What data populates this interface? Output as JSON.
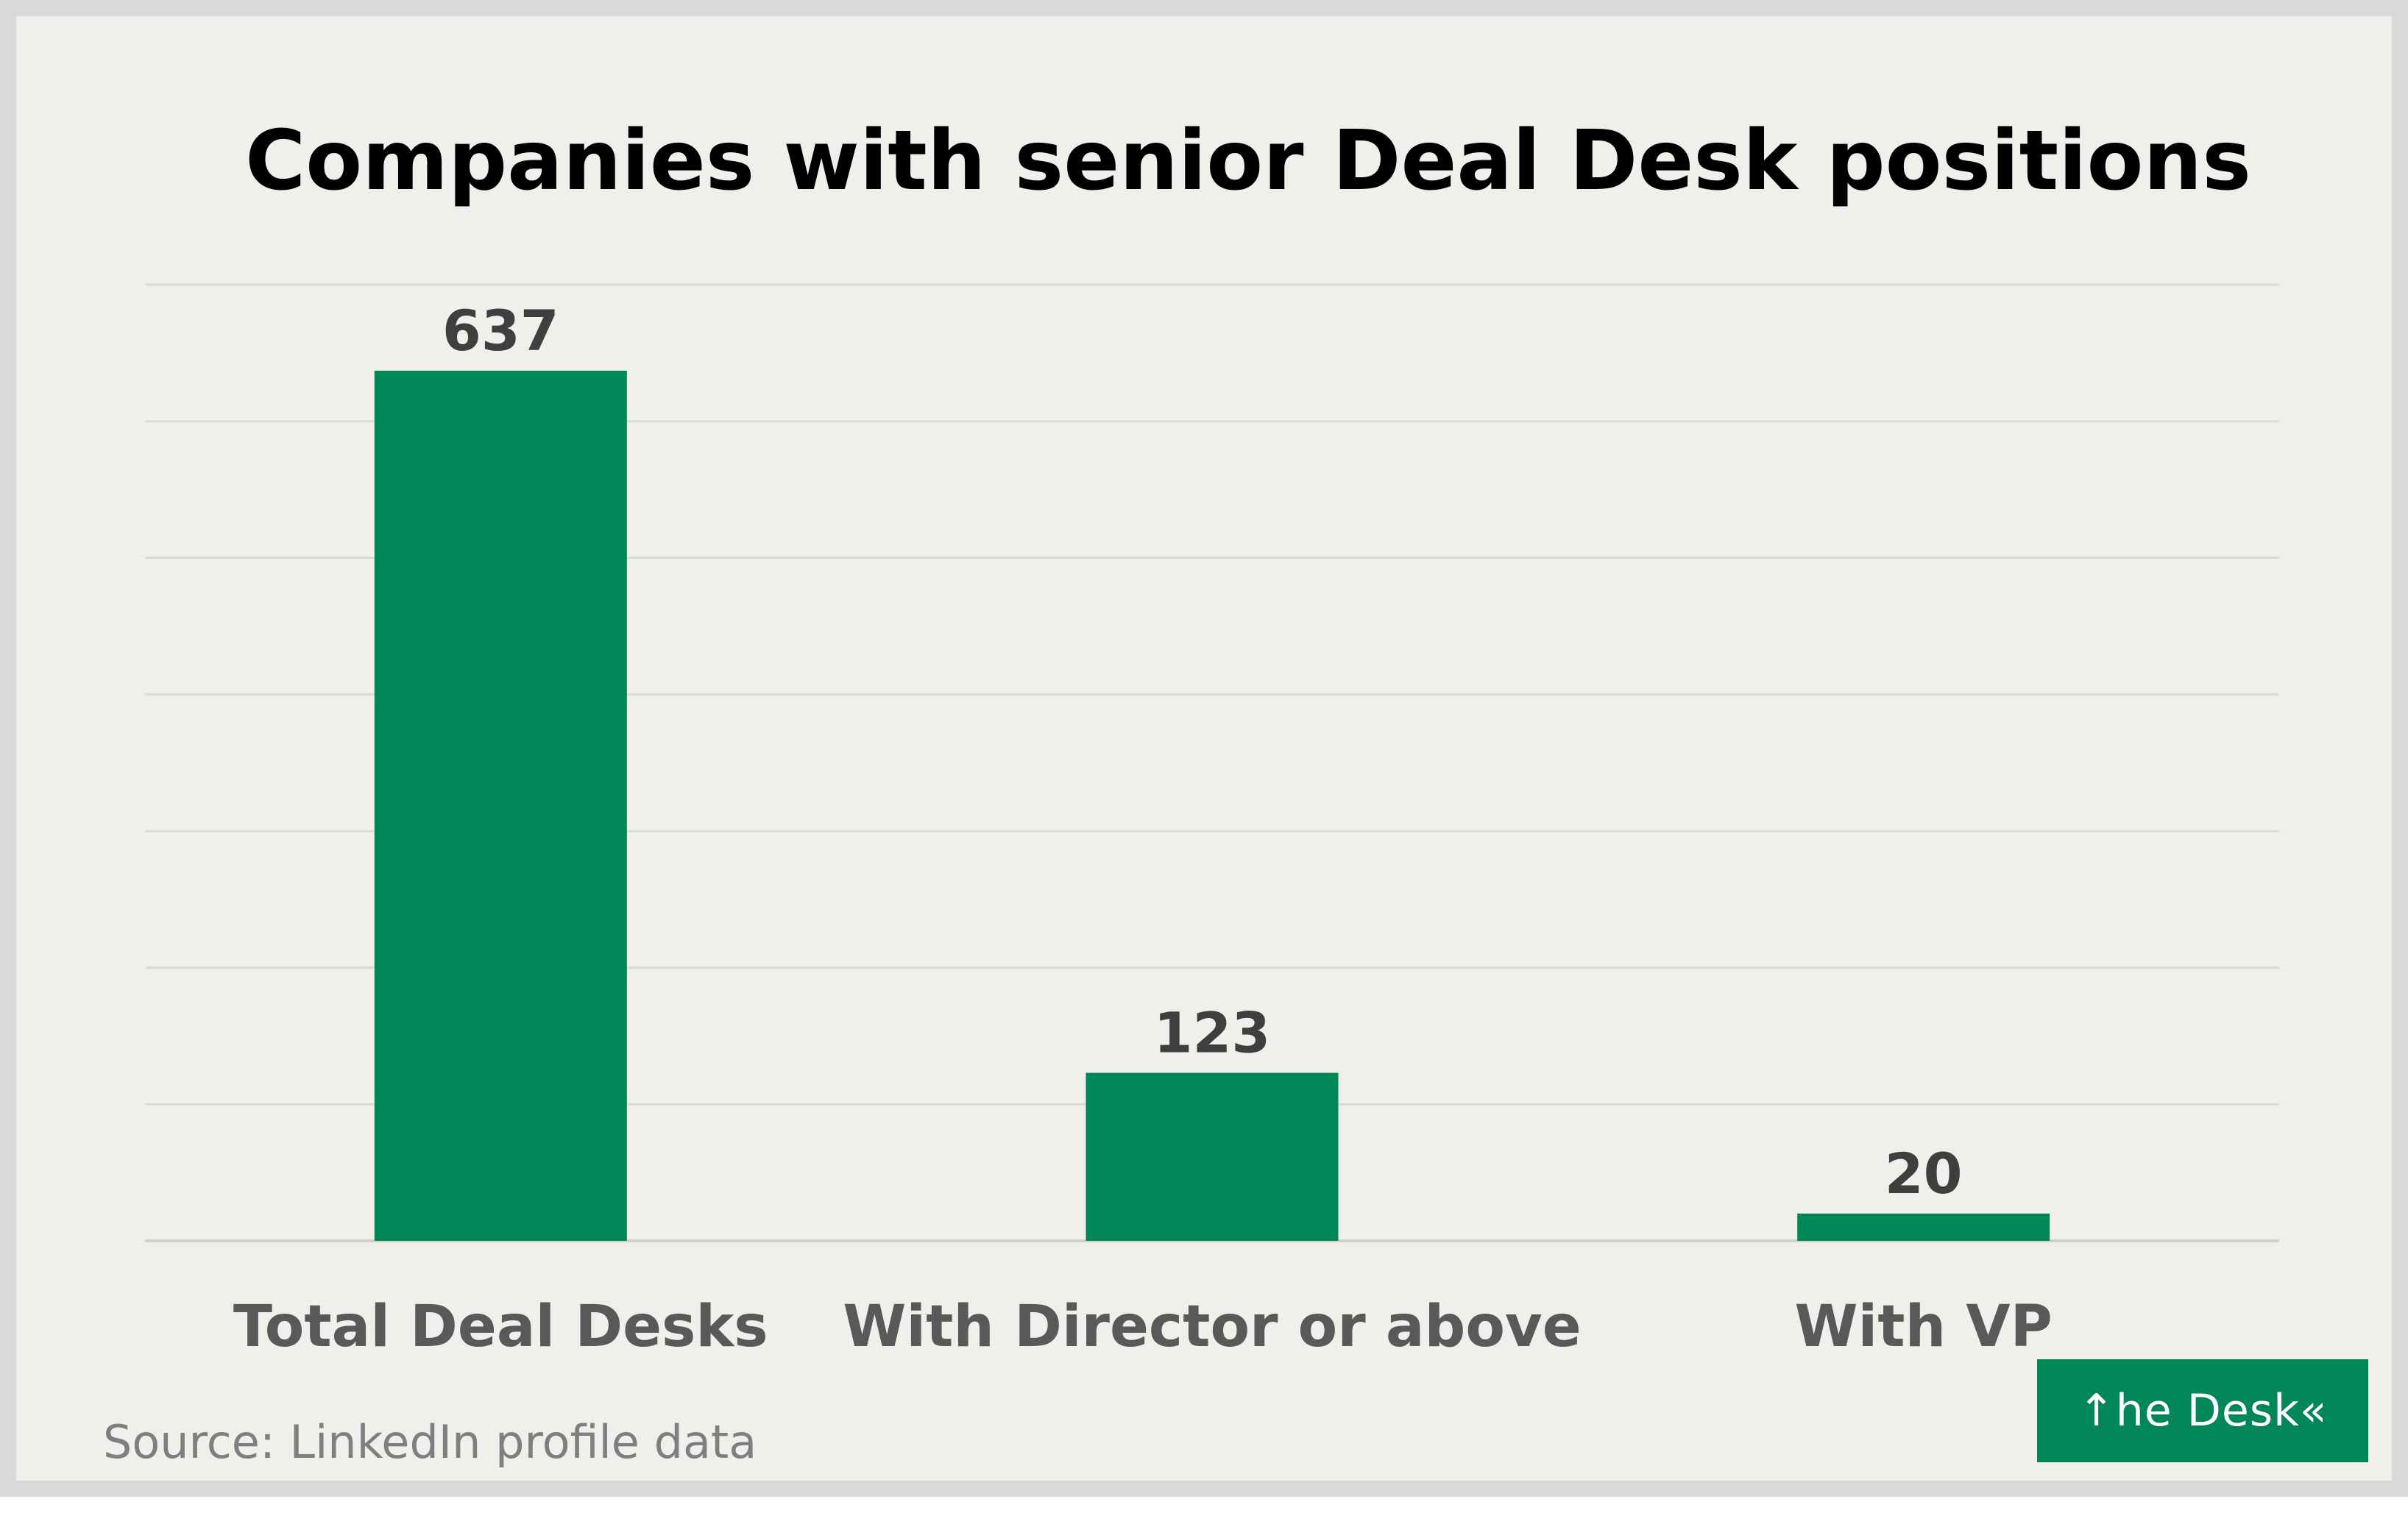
{
  "chart_data": {
    "type": "bar",
    "title": "Companies with senior Deal Desk positions",
    "categories": [
      "Total Deal Desks",
      "With Director or above",
      "With VP"
    ],
    "values": [
      637,
      123,
      20
    ],
    "data_labels": [
      "637",
      "123",
      "20"
    ],
    "ylim": [
      0,
      700
    ],
    "y_gridline_step": 100,
    "grid": true,
    "legend": "none",
    "bar_color": "#008657",
    "source": "Source: LinkedIn profile data"
  },
  "logo": {
    "text": "↑he Desk«"
  }
}
